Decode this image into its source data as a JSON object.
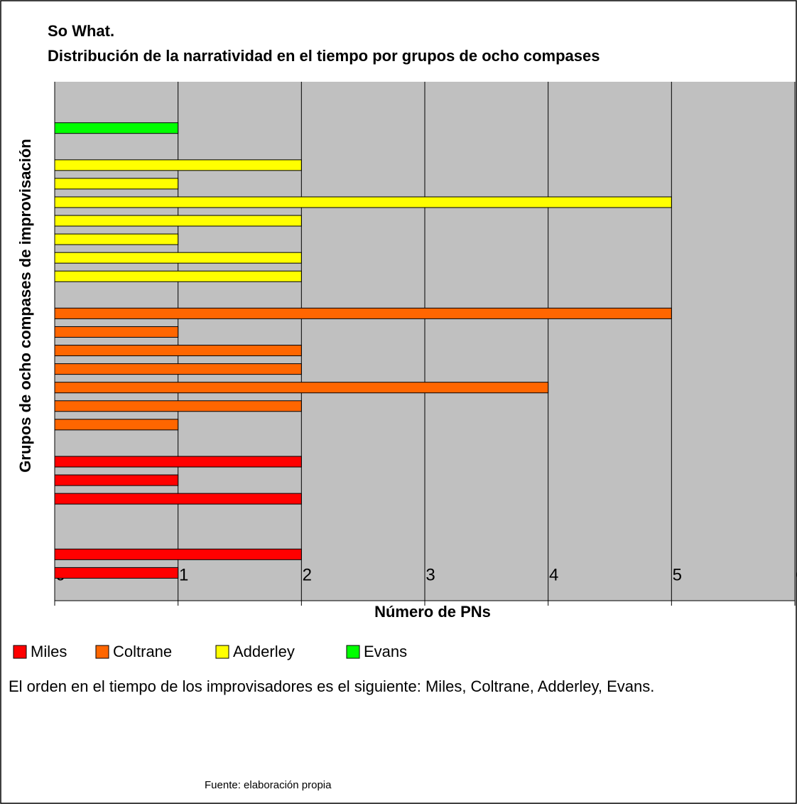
{
  "chart_data": {
    "type": "bar",
    "orientation": "horizontal",
    "title": [
      "So What.",
      "Distribución de la narratividad en el tiempo por grupos de ocho compases"
    ],
    "xlabel": "Número de PNs",
    "ylabel": "Grupos de ocho compases de improvisación",
    "categories": [
      null,
      null,
      null,
      null,
      null,
      null,
      null,
      null,
      null,
      null,
      null,
      null,
      null,
      null,
      null,
      null,
      null,
      null,
      null,
      null,
      null,
      null,
      null,
      null,
      null,
      null,
      null,
      null
    ],
    "series": [
      {
        "name": "Miles",
        "color": "#ff0000",
        "values": [
          null,
          1,
          2,
          null,
          null,
          2,
          1,
          2,
          null,
          null,
          null,
          null,
          null,
          null,
          null,
          null,
          null,
          null,
          null,
          null,
          null,
          null,
          null,
          null,
          null,
          null,
          null,
          null
        ]
      },
      {
        "name": "Coltrane",
        "color": "#ff6600",
        "values": [
          null,
          null,
          null,
          null,
          null,
          null,
          null,
          null,
          null,
          1,
          2,
          4,
          2,
          2,
          1,
          5,
          null,
          null,
          null,
          null,
          null,
          null,
          null,
          null,
          null,
          null,
          null,
          null
        ]
      },
      {
        "name": "Adderley",
        "color": "#ffff00",
        "values": [
          null,
          null,
          null,
          null,
          null,
          null,
          null,
          null,
          null,
          null,
          null,
          null,
          null,
          null,
          null,
          null,
          null,
          2,
          2,
          1,
          2,
          5,
          1,
          2,
          null,
          null,
          null,
          null
        ]
      },
      {
        "name": "Evans",
        "color": "#00ff00",
        "values": [
          null,
          null,
          null,
          null,
          null,
          null,
          null,
          null,
          null,
          null,
          null,
          null,
          null,
          null,
          null,
          null,
          null,
          null,
          null,
          null,
          null,
          null,
          null,
          null,
          null,
          1,
          null,
          null
        ]
      }
    ],
    "xlim": [
      0,
      6
    ],
    "xticks": [
      0,
      1,
      2,
      3,
      4,
      5,
      6
    ],
    "grid": true,
    "plot_background": "#c0c0c0",
    "note": "El orden en el tiempo de los improvisadores es el siguiente: Miles, Coltrane, Adderley, Evans.",
    "source": "Fuente: elaboración propia"
  }
}
